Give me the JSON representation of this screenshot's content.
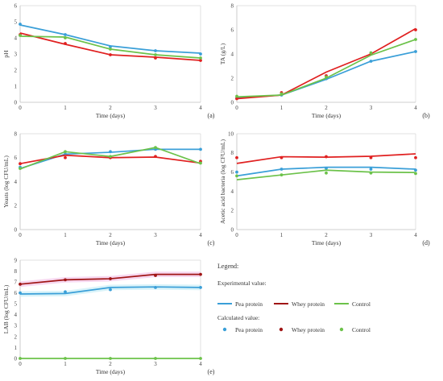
{
  "colors": {
    "pea": "#3a9fd8",
    "whey": "#e02020",
    "whey_lab": "#a01515",
    "control": "#6cc24a",
    "band": "#f3c8ea",
    "band_pea": "#c9eef7"
  },
  "legend": {
    "title": "Legend:",
    "experimental_label": "Experimental value:",
    "calculated_label": "Calculated value:",
    "items": [
      "Pea protein",
      "Whey protein",
      "Control"
    ]
  },
  "chart_data": [
    {
      "id": "a",
      "type": "line",
      "tag": "(a)",
      "xlabel": "Time (days)",
      "ylabel": "pH",
      "x": [
        0,
        1,
        2,
        3,
        4
      ],
      "xlim": [
        0,
        4
      ],
      "ylim": [
        0,
        6
      ],
      "yticks": [
        0,
        1,
        2,
        3,
        4,
        5,
        6
      ],
      "series": [
        {
          "name": "Pea protein",
          "color": "pea",
          "line": [
            4.8,
            4.2,
            3.5,
            3.2,
            3.05
          ],
          "points": [
            4.85,
            4.2,
            3.45,
            3.2,
            3.0
          ]
        },
        {
          "name": "Whey protein",
          "color": "whey",
          "line": [
            4.3,
            3.6,
            2.95,
            2.8,
            2.6
          ],
          "points": [
            4.2,
            3.65,
            2.95,
            2.75,
            2.6
          ]
        },
        {
          "name": "Control",
          "color": "control",
          "line": [
            4.1,
            4.05,
            3.3,
            2.95,
            2.75
          ],
          "points": [
            4.15,
            4.0,
            3.3,
            2.95,
            2.75
          ]
        }
      ]
    },
    {
      "id": "b",
      "type": "line",
      "tag": "(b)",
      "xlabel": "Time (days)",
      "ylabel": "TA (g/L)",
      "x": [
        0,
        1,
        2,
        3,
        4
      ],
      "xlim": [
        0,
        4
      ],
      "ylim": [
        0,
        8
      ],
      "yticks": [
        0,
        2,
        4,
        6,
        8
      ],
      "series": [
        {
          "name": "Pea protein",
          "color": "pea",
          "line": [
            0.35,
            0.6,
            1.9,
            3.4,
            4.2
          ],
          "points": [
            0.35,
            0.6,
            1.95,
            3.4,
            4.2
          ]
        },
        {
          "name": "Whey protein",
          "color": "whey",
          "line": [
            0.3,
            0.6,
            2.5,
            4.0,
            6.1
          ],
          "points": [
            0.3,
            0.8,
            2.2,
            4.0,
            6.0
          ]
        },
        {
          "name": "Control",
          "color": "control",
          "line": [
            0.45,
            0.6,
            2.0,
            3.9,
            5.2
          ],
          "points": [
            0.5,
            0.7,
            2.1,
            4.1,
            5.2
          ]
        }
      ]
    },
    {
      "id": "c",
      "type": "line",
      "tag": "(c)",
      "xlabel": "Time (days)",
      "ylabel": "Yeasts (log CFU/mL)",
      "x": [
        0,
        1,
        2,
        3,
        4
      ],
      "xlim": [
        0,
        4
      ],
      "ylim": [
        0,
        8
      ],
      "yticks": [
        0,
        2,
        4,
        6,
        8
      ],
      "series": [
        {
          "name": "Pea protein",
          "color": "pea",
          "line": [
            5.1,
            6.3,
            6.45,
            6.7,
            6.7
          ],
          "points": [
            5.2,
            6.3,
            6.5,
            6.7,
            6.7
          ]
        },
        {
          "name": "Whey protein",
          "color": "whey",
          "line": [
            5.5,
            6.2,
            6.0,
            6.05,
            5.55
          ],
          "points": [
            5.5,
            6.0,
            6.0,
            6.1,
            5.7
          ]
        },
        {
          "name": "Control",
          "color": "control",
          "line": [
            5.05,
            6.5,
            6.1,
            6.85,
            5.5
          ],
          "points": [
            5.1,
            6.5,
            6.1,
            6.85,
            5.55
          ]
        }
      ]
    },
    {
      "id": "d",
      "type": "line",
      "tag": "(d)",
      "xlabel": "Time (days)",
      "ylabel": "Acetic acid bacteria (log CFU/mL)",
      "x": [
        0,
        1,
        2,
        3,
        4
      ],
      "xlim": [
        0,
        4
      ],
      "ylim": [
        0,
        10
      ],
      "yticks": [
        0,
        2,
        4,
        6,
        8,
        10
      ],
      "series": [
        {
          "name": "Pea protein",
          "color": "pea",
          "line": [
            5.6,
            6.3,
            6.5,
            6.5,
            6.3
          ],
          "points": [
            6.0,
            6.3,
            6.4,
            6.3,
            6.2
          ]
        },
        {
          "name": "Whey protein",
          "color": "whey",
          "line": [
            6.9,
            7.6,
            7.55,
            7.65,
            7.9
          ],
          "points": [
            7.5,
            7.5,
            7.6,
            7.5,
            7.5
          ]
        },
        {
          "name": "Control",
          "color": "control",
          "line": [
            5.2,
            5.7,
            6.2,
            6.0,
            5.95
          ],
          "points": [
            5.6,
            5.7,
            5.9,
            5.9,
            5.85
          ]
        }
      ]
    },
    {
      "id": "e",
      "type": "line",
      "tag": "(e)",
      "xlabel": "Time (days)",
      "ylabel": "LAB (log CFU/mL)",
      "x": [
        0,
        1,
        2,
        3,
        4
      ],
      "xlim": [
        0,
        4
      ],
      "ylim": [
        0,
        9
      ],
      "yticks": [
        0,
        1,
        2,
        3,
        4,
        5,
        6,
        7,
        8,
        9
      ],
      "series": [
        {
          "name": "Pea protein",
          "color": "pea",
          "line": [
            5.9,
            5.95,
            6.5,
            6.55,
            6.5
          ],
          "points": [
            6.0,
            6.1,
            6.3,
            6.5,
            6.5
          ],
          "band": "band_pea"
        },
        {
          "name": "Whey protein",
          "color": "whey_lab",
          "line": [
            6.8,
            7.2,
            7.3,
            7.7,
            7.7
          ],
          "points": [
            6.8,
            7.2,
            7.3,
            7.6,
            7.7
          ],
          "band": "band"
        },
        {
          "name": "Control",
          "color": "control",
          "line": [
            0,
            0,
            0,
            0,
            0
          ],
          "points": [
            0,
            0,
            0,
            0,
            0
          ]
        }
      ]
    }
  ]
}
